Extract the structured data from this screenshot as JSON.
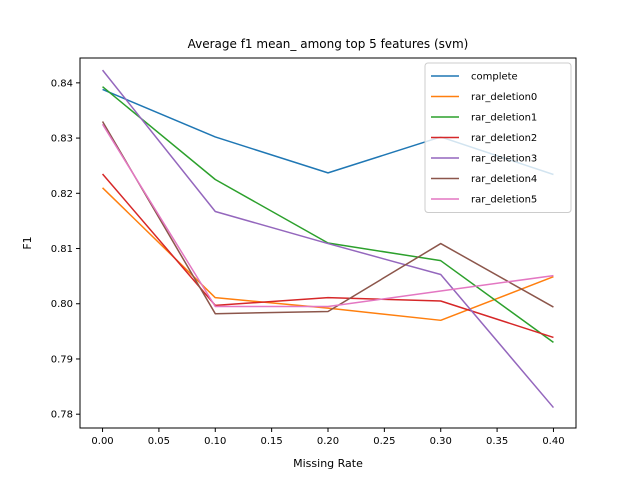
{
  "chart_data": {
    "type": "line",
    "title": "Average f1 mean_ among top 5 features (svm)",
    "xlabel": "Missing Rate",
    "ylabel": "F1",
    "x": [
      0.0,
      0.1,
      0.2,
      0.3,
      0.4
    ],
    "xlim": [
      -0.02,
      0.42
    ],
    "ylim": [
      0.7775,
      0.8445
    ],
    "xticks": [
      0.0,
      0.05,
      0.1,
      0.15,
      0.2,
      0.25,
      0.3,
      0.35,
      0.4
    ],
    "xtick_labels": [
      "0.00",
      "0.05",
      "0.10",
      "0.15",
      "0.20",
      "0.25",
      "0.30",
      "0.35",
      "0.40"
    ],
    "yticks": [
      0.78,
      0.79,
      0.8,
      0.81,
      0.82,
      0.83,
      0.84
    ],
    "ytick_labels": [
      "0.78",
      "0.79",
      "0.80",
      "0.81",
      "0.82",
      "0.83",
      "0.84"
    ],
    "grid": false,
    "legend_position": "top-right",
    "series": [
      {
        "name": "complete",
        "color": "#1f77b4",
        "values": [
          0.8388,
          0.8302,
          0.8237,
          0.8302,
          0.8234
        ]
      },
      {
        "name": "rar_deletion0",
        "color": "#ff7f0e",
        "values": [
          0.821,
          0.8011,
          0.7992,
          0.797,
          0.8049
        ]
      },
      {
        "name": "rar_deletion1",
        "color": "#2ca02c",
        "values": [
          0.8393,
          0.8225,
          0.811,
          0.8078,
          0.793
        ]
      },
      {
        "name": "rar_deletion2",
        "color": "#d62728",
        "values": [
          0.8235,
          0.7997,
          0.8011,
          0.8005,
          0.7939
        ]
      },
      {
        "name": "rar_deletion3",
        "color": "#9467bd",
        "values": [
          0.8423,
          0.8167,
          0.8109,
          0.8053,
          0.7812
        ]
      },
      {
        "name": "rar_deletion4",
        "color": "#8c564b",
        "values": [
          0.833,
          0.7982,
          0.7986,
          0.8109,
          0.7994
        ]
      },
      {
        "name": "rar_deletion5",
        "color": "#e377c2",
        "values": [
          0.8325,
          0.7995,
          0.7995,
          0.8023,
          0.8051
        ]
      }
    ]
  }
}
